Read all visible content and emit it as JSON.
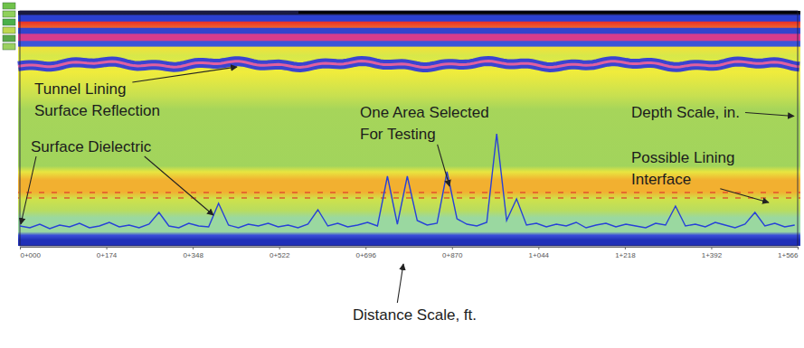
{
  "chart_data": {
    "type": "line",
    "xlabel": "Distance Scale, ft.",
    "annotations": [
      "Tunnel Lining Surface Reflection",
      "Surface Dielectric",
      "One Area Selected For Testing",
      "Depth Scale, in.",
      "Possible Lining Interface"
    ],
    "color": "#2741d8",
    "x": [
      0,
      20,
      40,
      60,
      80,
      100,
      120,
      140,
      160,
      180,
      200,
      220,
      240,
      260,
      280,
      300,
      320,
      340,
      360,
      380,
      400,
      420,
      440,
      460,
      480,
      500,
      520,
      540,
      560,
      580,
      600,
      620,
      640,
      660,
      680,
      700,
      720,
      740,
      760,
      780,
      800,
      820,
      840,
      860,
      880,
      900,
      920,
      940,
      960,
      980,
      1000,
      1020,
      1040,
      1060,
      1080,
      1100,
      1120,
      1140,
      1160,
      1180,
      1200,
      1220,
      1240,
      1260,
      1280,
      1300,
      1320,
      1340,
      1360,
      1380,
      1400,
      1420,
      1440,
      1460,
      1480,
      1500,
      1520,
      1540,
      1560
    ],
    "values": [
      2.2,
      2.0,
      2.4,
      1.9,
      2.3,
      2.1,
      2.5,
      2.0,
      2.2,
      2.6,
      2.1,
      2.3,
      2.0,
      2.4,
      3.7,
      2.2,
      2.0,
      2.5,
      2.2,
      2.1,
      4.7,
      2.3,
      2.0,
      2.4,
      2.2,
      2.5,
      2.1,
      2.3,
      2.0,
      2.4,
      4.0,
      2.2,
      2.5,
      2.1,
      2.3,
      2.6,
      2.2,
      7.7,
      2.4,
      7.7,
      2.8,
      2.3,
      2.5,
      8.2,
      3.0,
      2.4,
      2.2,
      2.6,
      12.4,
      2.8,
      5.2,
      2.3,
      2.5,
      2.1,
      2.4,
      2.2,
      2.6,
      2.0,
      2.3,
      2.5,
      2.1,
      2.4,
      2.2,
      2.0,
      2.5,
      2.3,
      4.4,
      2.2,
      2.4,
      2.1,
      2.6,
      2.3,
      2.0,
      2.4,
      3.7,
      2.2,
      2.5,
      2.1,
      2.3
    ],
    "xlim": [
      0,
      1566
    ],
    "xticks": [
      {
        "value": 0,
        "label": "0+000"
      },
      {
        "value": 174,
        "label": "0+174"
      },
      {
        "value": 348,
        "label": "0+348"
      },
      {
        "value": 522,
        "label": "0+522"
      },
      {
        "value": 696,
        "label": "0+696"
      },
      {
        "value": 870,
        "label": "0+870"
      },
      {
        "value": 1044,
        "label": "1+044"
      },
      {
        "value": 1218,
        "label": "1+218"
      },
      {
        "value": 1392,
        "label": "1+392"
      },
      {
        "value": 1566,
        "label": "1+566"
      }
    ],
    "ylim": [
      0,
      26
    ],
    "tick_labels": "x"
  }
}
